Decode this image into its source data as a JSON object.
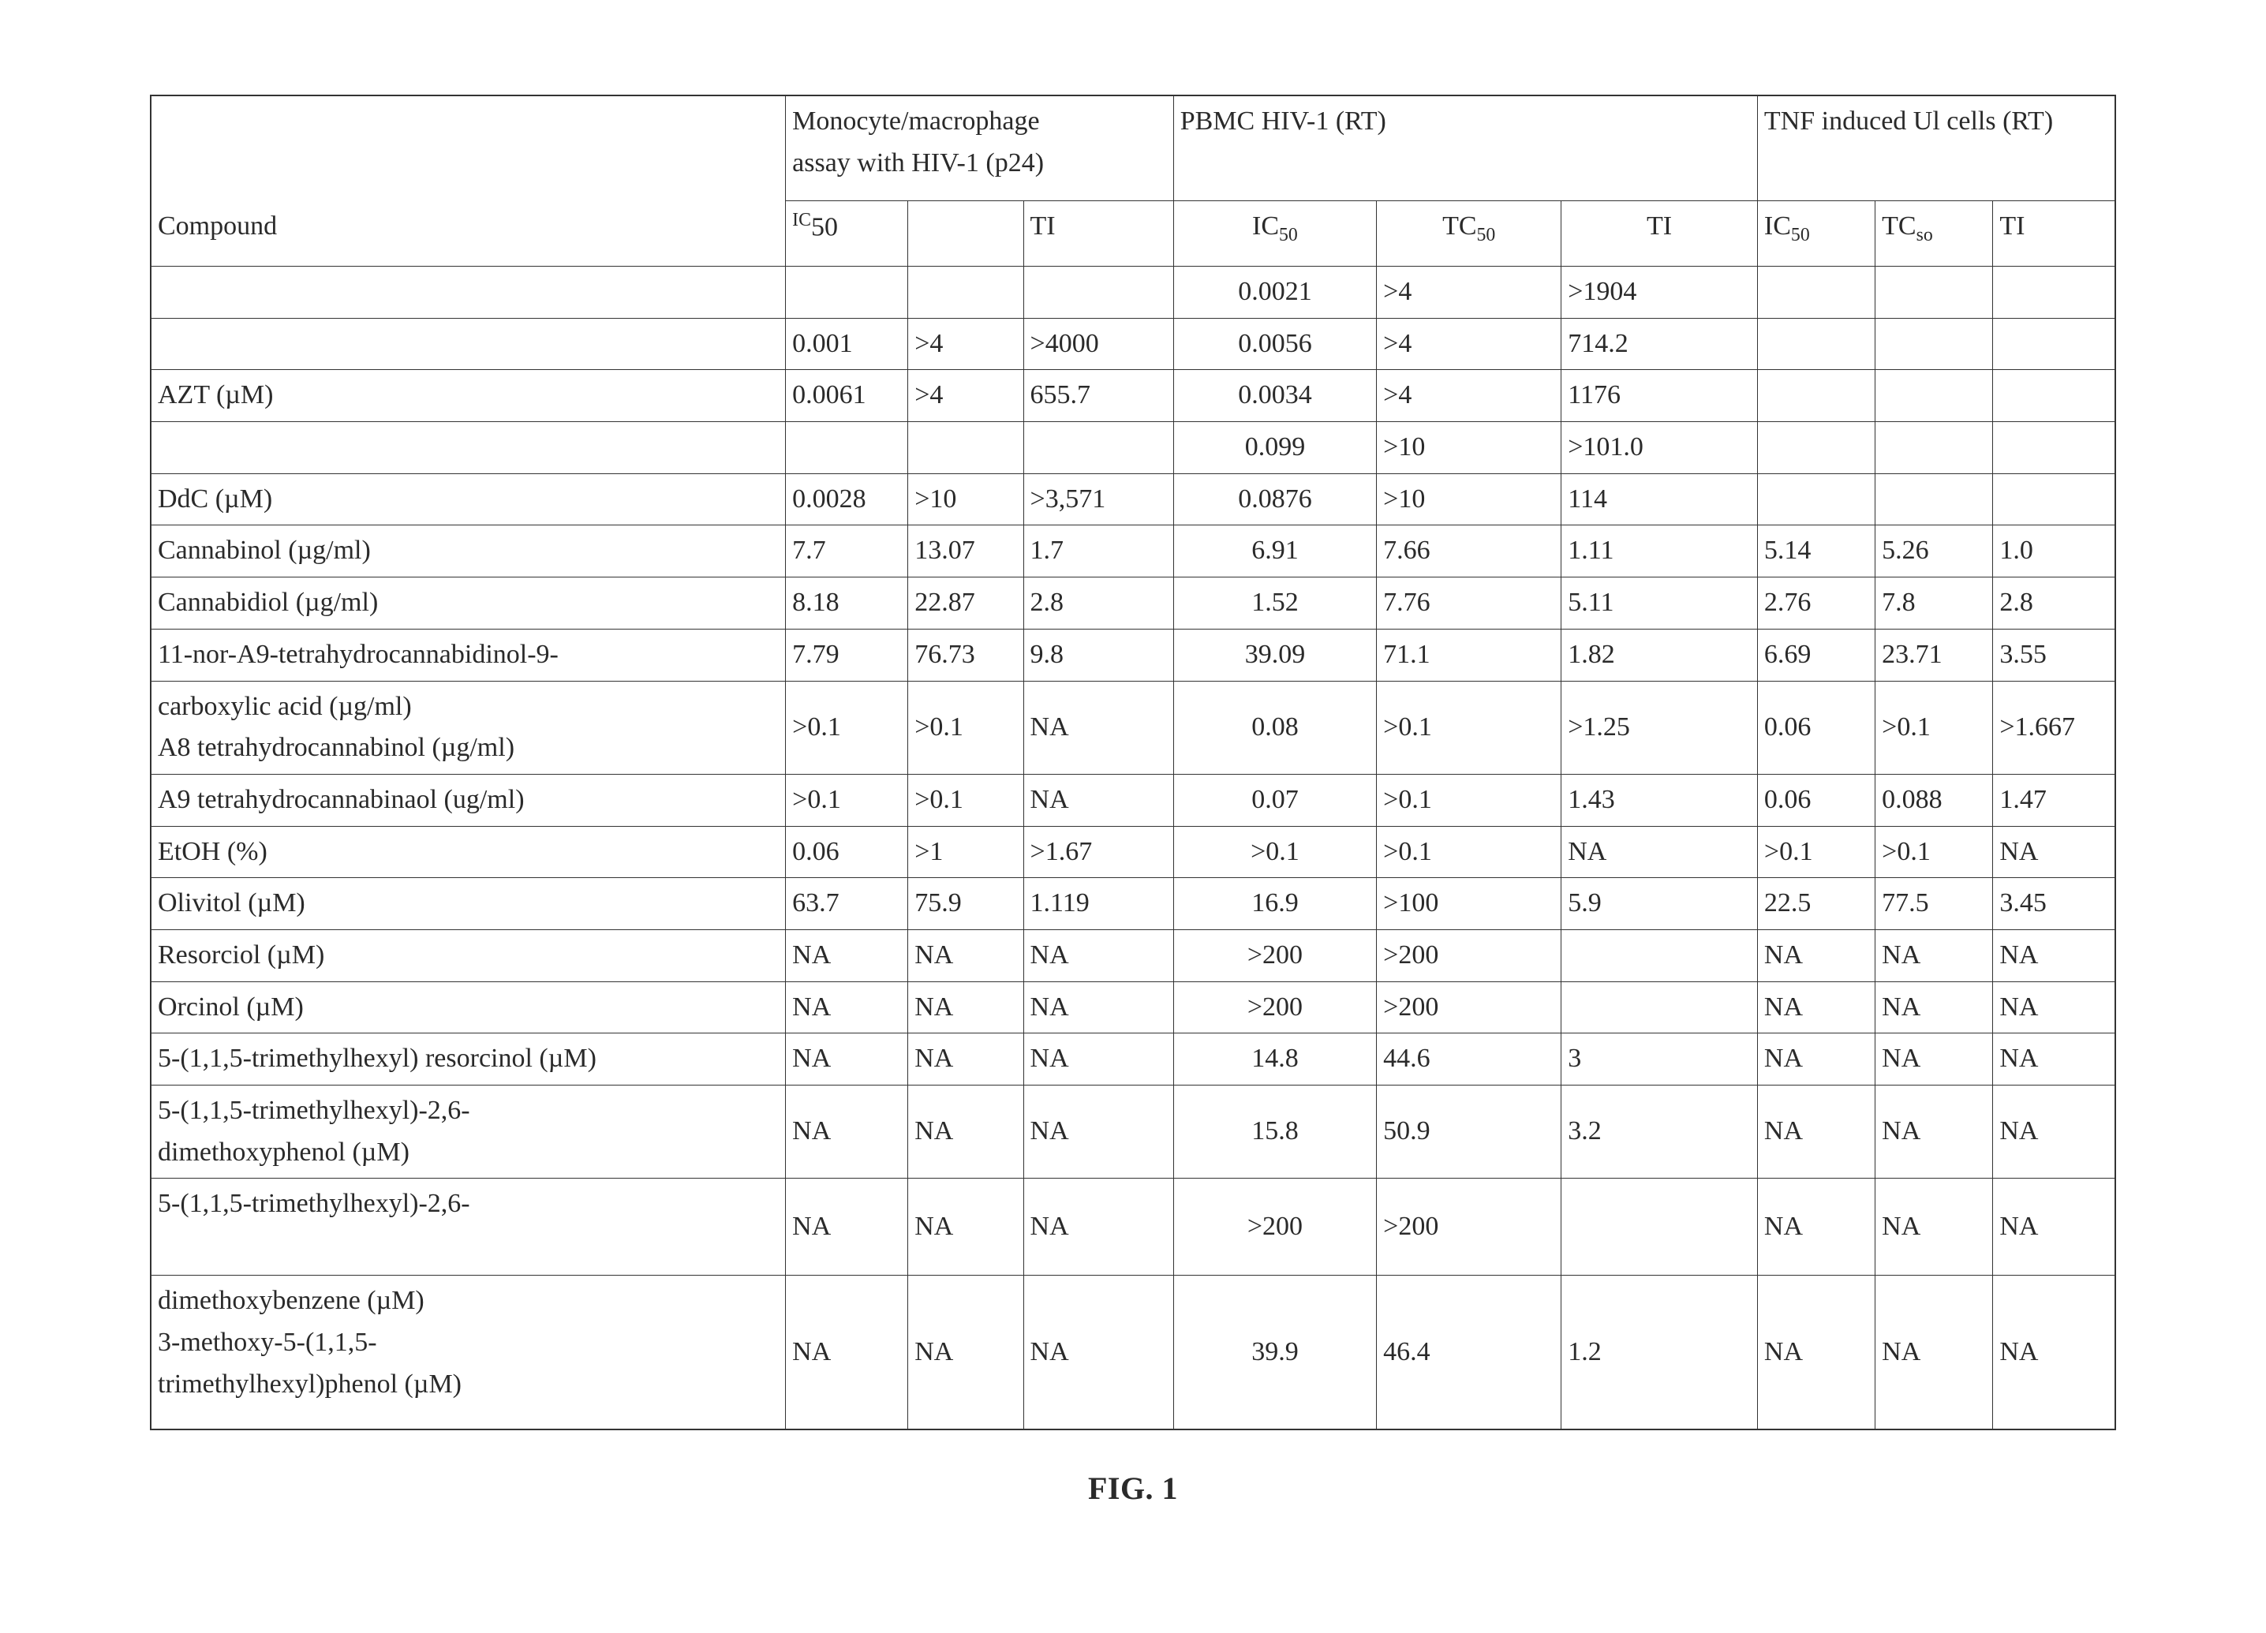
{
  "figure_label": "FIG. 1",
  "header": {
    "groups": [
      {
        "label_line1": "Monocyte/macrophage",
        "label_line2": "assay with HIV-1 (p24)",
        "span": 3
      },
      {
        "label": "PBMC HIV-1 (RT)",
        "span": 3
      },
      {
        "label": "TNF induced Ul cells (RT)",
        "span": 3
      }
    ],
    "compound_label": "Compound",
    "sub": {
      "g1": {
        "ic50_html": "<span class='sup'>IC</span>50",
        "c2": "",
        "ti": "TI"
      },
      "g2": {
        "ic50_html": "IC<span class='sub'>50</span>",
        "tc50_html": "TC<span class='sub'>50</span>",
        "ti": "TI"
      },
      "g3": {
        "ic50_html": "IC<span class='sub'>50</span>",
        "tc_html": "TC<span class='sub'>so</span>",
        "ti": "TI"
      }
    }
  },
  "rows": [
    {
      "compound": "",
      "g1": [
        "",
        "",
        ""
      ],
      "g2": [
        "0.0021",
        ">4",
        ">1904"
      ],
      "g3": [
        "",
        "",
        ""
      ],
      "no_compound_border": true
    },
    {
      "compound": "",
      "g1": [
        "0.001",
        ">4",
        ">4000"
      ],
      "g2": [
        "0.0056",
        ">4",
        "714.2"
      ],
      "g3": [
        "",
        "",
        ""
      ],
      "no_compound_border": true
    },
    {
      "compound": "AZT (µM)",
      "g1": [
        "0.0061",
        ">4",
        "655.7"
      ],
      "g2": [
        "0.0034",
        ">4",
        "1176"
      ],
      "g3": [
        "",
        "",
        ""
      ]
    },
    {
      "compound": "",
      "g1": [
        "",
        "",
        ""
      ],
      "g2": [
        "0.099",
        ">10",
        ">101.0"
      ],
      "g3": [
        "",
        "",
        ""
      ],
      "no_compound_border": true
    },
    {
      "compound": "DdC (µM)",
      "g1": [
        "0.0028",
        ">10",
        ">3,571"
      ],
      "g2": [
        "0.0876",
        ">10",
        "114"
      ],
      "g3": [
        "",
        "",
        ""
      ]
    },
    {
      "compound": "Cannabinol (µg/ml)",
      "g1": [
        "7.7",
        "13.07",
        "1.7"
      ],
      "g2": [
        "6.91",
        "7.66",
        "1.11"
      ],
      "g3": [
        "5.14",
        "5.26",
        "1.0"
      ]
    },
    {
      "compound": "Cannabidiol (µg/ml)",
      "g1": [
        "8.18",
        "22.87",
        "2.8"
      ],
      "g2": [
        "1.52",
        "7.76",
        "5.11"
      ],
      "g3": [
        "2.76",
        "7.8",
        "2.8"
      ]
    },
    {
      "compound": "11-nor-A9-tetrahydrocannabidinol-9-",
      "g1": [
        "7.79",
        "76.73",
        "9.8"
      ],
      "g2": [
        "39.09",
        "71.1",
        "1.82"
      ],
      "g3": [
        "6.69",
        "23.71",
        "3.55"
      ]
    },
    {
      "compound": "carboxylic acid (µg/ml)\nA8 tetrahydrocannabinol (µg/ml)",
      "g1": [
        ">0.1",
        ">0.1",
        "NA"
      ],
      "g2": [
        "0.08",
        ">0.1",
        ">1.25"
      ],
      "g3": [
        "0.06",
        ">0.1",
        ">1.667"
      ],
      "multiline": true
    },
    {
      "compound": "A9 tetrahydrocannabinaol (ug/ml)",
      "g1": [
        ">0.1",
        ">0.1",
        "NA"
      ],
      "g2": [
        "0.07",
        ">0.1",
        "1.43"
      ],
      "g3": [
        "0.06",
        "0.088",
        "1.47"
      ]
    },
    {
      "compound": "EtOH (%)",
      "g1": [
        "0.06",
        ">1",
        ">1.67"
      ],
      "g2": [
        ">0.1",
        ">0.1",
        "NA"
      ],
      "g3": [
        ">0.1",
        ">0.1",
        "NA"
      ]
    },
    {
      "compound": "Olivitol (µM)",
      "g1": [
        "63.7",
        "75.9",
        "1.119"
      ],
      "g2": [
        "16.9",
        ">100",
        "5.9"
      ],
      "g3": [
        "22.5",
        "77.5",
        "3.45"
      ]
    },
    {
      "compound": "Resorciol (µM)",
      "g1": [
        "NA",
        "NA",
        "NA"
      ],
      "g2": [
        ">200",
        ">200",
        ""
      ],
      "g3": [
        "NA",
        "NA",
        "NA"
      ]
    },
    {
      "compound": "Orcinol (µM)",
      "g1": [
        "NA",
        "NA",
        "NA"
      ],
      "g2": [
        ">200",
        ">200",
        ""
      ],
      "g3": [
        "NA",
        "NA",
        "NA"
      ]
    },
    {
      "compound": "5-(1,1,5-trimethylhexyl) resorcinol (µM)",
      "g1": [
        "NA",
        "NA",
        "NA"
      ],
      "g2": [
        "14.8",
        "44.6",
        "3"
      ],
      "g3": [
        "NA",
        "NA",
        "NA"
      ]
    },
    {
      "compound": "5-(1,1,5-trimethylhexyl)-2,6-\ndimethoxyphenol (µM)",
      "g1": [
        "NA",
        "NA",
        "NA"
      ],
      "g2": [
        "15.8",
        "50.9",
        "3.2"
      ],
      "g3": [
        "NA",
        "NA",
        "NA"
      ],
      "multiline": true
    },
    {
      "compound": "5-(1,1,5-trimethylhexyl)-2,6-",
      "g1": [
        "NA",
        "NA",
        "NA"
      ],
      "g2": [
        ">200",
        ">200",
        ""
      ],
      "g3": [
        "NA",
        "NA",
        "NA"
      ],
      "tall": true
    },
    {
      "compound": "dimethoxybenzene (µM)\n3-methoxy-5-(1,1,5-\ntrimethylhexyl)phenol (µM)",
      "g1": [
        "NA",
        "NA",
        "NA"
      ],
      "g2": [
        "39.9",
        "46.4",
        "1.2"
      ],
      "g3": [
        "NA",
        "NA",
        "NA"
      ],
      "multiline": true,
      "extra_tall": true
    }
  ],
  "align": {
    "g1": [
      "num-l",
      "num-l",
      "num-l"
    ],
    "g2": [
      "num-c",
      "num-l",
      "num-l"
    ],
    "g3": [
      "num-l",
      "num-l",
      "num-l"
    ]
  }
}
